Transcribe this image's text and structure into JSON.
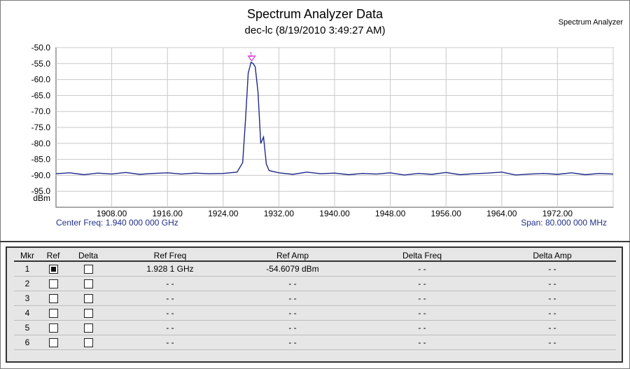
{
  "header": {
    "title": "Spectrum Analyzer Data",
    "subtitle": "dec-lc (8/19/2010 3:49:27 AM)",
    "brand": "Spectrum Analyzer"
  },
  "footer": {
    "center_freq": "Center Freq: 1.940 000 000 GHz",
    "span": "Span: 80.000 000 MHz"
  },
  "colors": {
    "trace": "#1f2a8a",
    "marker": "#cc33cc",
    "grid": "#c8c8c8"
  },
  "chart_data": {
    "type": "line",
    "xlim": [
      1900,
      1980
    ],
    "ylim": [
      -100,
      -50
    ],
    "y_unit_label": "dBm",
    "x_ticks": [
      "1908.00",
      "1916.00",
      "1924.00",
      "1932.00",
      "1940.00",
      "1948.00",
      "1956.00",
      "1964.00",
      "1972.00"
    ],
    "y_ticks": [
      "-50.0",
      "-55.0",
      "-60.0",
      "-65.0",
      "-70.0",
      "-75.0",
      "-80.0",
      "-85.0",
      "-90.0",
      "-95.0"
    ],
    "series": [
      {
        "x": [
          1900,
          1902,
          1904,
          1906,
          1908,
          1910,
          1912,
          1914,
          1916,
          1918,
          1920,
          1922,
          1924,
          1926,
          1926.8,
          1927.2,
          1927.6,
          1928.0,
          1928.3,
          1928.6,
          1929.0,
          1929.4,
          1929.8,
          1930.2,
          1930.6,
          1932,
          1934,
          1936,
          1938,
          1940,
          1942,
          1944,
          1946,
          1948,
          1950,
          1952,
          1954,
          1956,
          1958,
          1960,
          1962,
          1964,
          1966,
          1968,
          1970,
          1972,
          1974,
          1976,
          1978,
          1980
        ],
        "y": [
          -89.5,
          -89.2,
          -89.8,
          -89.3,
          -89.6,
          -89.1,
          -89.7,
          -89.4,
          -89.2,
          -89.6,
          -89.3,
          -89.5,
          -89.4,
          -89.0,
          -86.0,
          -73.0,
          -58.0,
          -54.6,
          -55.0,
          -56.0,
          -64.0,
          -80.0,
          -78.0,
          -86.5,
          -88.5,
          -89.2,
          -89.7,
          -89.0,
          -89.5,
          -89.3,
          -89.8,
          -89.4,
          -89.6,
          -89.2,
          -89.9,
          -89.4,
          -89.7,
          -89.1,
          -89.8,
          -89.5,
          -89.3,
          -89.0,
          -89.9,
          -89.6,
          -89.4,
          -89.7,
          -89.2,
          -89.8,
          -89.4,
          -89.6
        ]
      }
    ],
    "markers": [
      {
        "label": "1",
        "x": 1928.1,
        "y": -54.6079
      }
    ]
  },
  "markers_table": {
    "headers": [
      "Mkr",
      "Ref",
      "Delta",
      "Ref Freq",
      "Ref Amp",
      "Delta Freq",
      "Delta Amp"
    ],
    "rows": [
      {
        "mkr": "1",
        "ref_checked": true,
        "delta_checked": false,
        "ref_freq": "1.928 1 GHz",
        "ref_amp": "-54.6079 dBm",
        "delta_freq": "- -",
        "delta_amp": "- -"
      },
      {
        "mkr": "2",
        "ref_checked": false,
        "delta_checked": false,
        "ref_freq": "- -",
        "ref_amp": "- -",
        "delta_freq": "- -",
        "delta_amp": "- -"
      },
      {
        "mkr": "3",
        "ref_checked": false,
        "delta_checked": false,
        "ref_freq": "- -",
        "ref_amp": "- -",
        "delta_freq": "- -",
        "delta_amp": "- -"
      },
      {
        "mkr": "4",
        "ref_checked": false,
        "delta_checked": false,
        "ref_freq": "- -",
        "ref_amp": "- -",
        "delta_freq": "- -",
        "delta_amp": "- -"
      },
      {
        "mkr": "5",
        "ref_checked": false,
        "delta_checked": false,
        "ref_freq": "- -",
        "ref_amp": "- -",
        "delta_freq": "- -",
        "delta_amp": "- -"
      },
      {
        "mkr": "6",
        "ref_checked": false,
        "delta_checked": false,
        "ref_freq": "- -",
        "ref_amp": "- -",
        "delta_freq": "- -",
        "delta_amp": "- -"
      }
    ]
  }
}
